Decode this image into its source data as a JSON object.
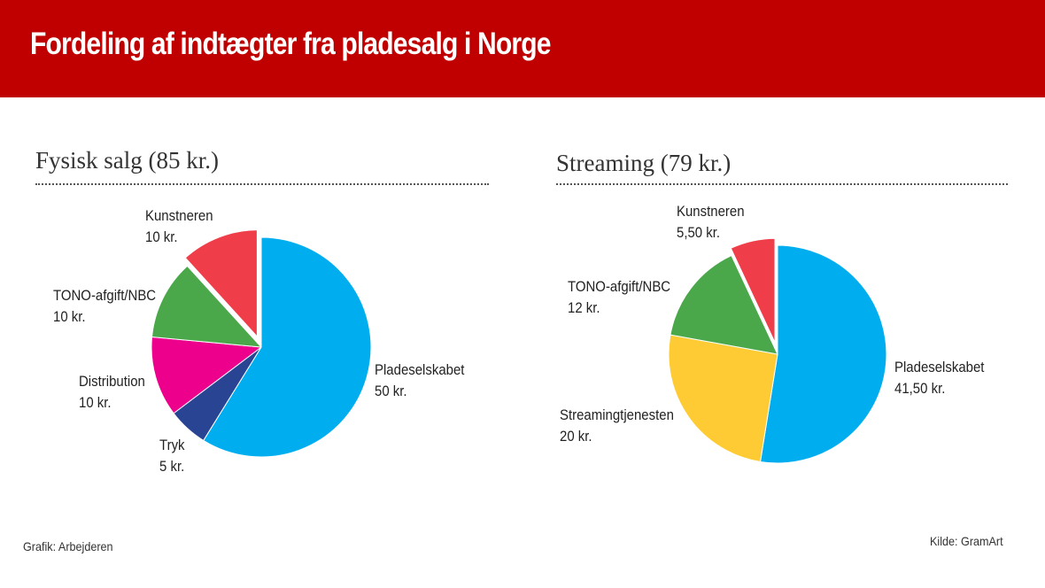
{
  "header": {
    "title": "Fordeling af indtægter fra pladesalg i Norge"
  },
  "footer": {
    "credit": "Grafik: Arbejderen",
    "source": "Kilde: GramArt"
  },
  "colors": {
    "header_bg": "#c00000",
    "pladeselskabet": "#00aeef",
    "tryk": "#2a4494",
    "distribution": "#ec008c",
    "tono": "#4aa84a",
    "kunstneren": "#ef3e4a",
    "streamingtjenesten": "#fecb34"
  },
  "chart_data": [
    {
      "type": "pie",
      "title": "Fysisk salg (85 kr.)",
      "slices": [
        {
          "name": "Pladeselskabet",
          "value": 50,
          "value_label": "50 kr.",
          "color": "#00aeef",
          "exploded": false
        },
        {
          "name": "Tryk",
          "value": 5,
          "value_label": "5 kr.",
          "color": "#2a4494",
          "exploded": false
        },
        {
          "name": "Distribution",
          "value": 10,
          "value_label": "10 kr.",
          "color": "#ec008c",
          "exploded": false
        },
        {
          "name": "TONO-afgift/NBC",
          "value": 10,
          "value_label": "10 kr.",
          "color": "#4aa84a",
          "exploded": false
        },
        {
          "name": "Kunstneren",
          "value": 10,
          "value_label": "10 kr.",
          "color": "#ef3e4a",
          "exploded": true
        }
      ]
    },
    {
      "type": "pie",
      "title": "Streaming (79 kr.)",
      "slices": [
        {
          "name": "Pladeselskabet",
          "value": 41.5,
          "value_label": "41,50 kr.",
          "color": "#00aeef",
          "exploded": false
        },
        {
          "name": "Streamingtjenesten",
          "value": 20,
          "value_label": "20 kr.",
          "color": "#fecb34",
          "exploded": false
        },
        {
          "name": "TONO-afgift/NBC",
          "value": 12,
          "value_label": "12 kr.",
          "color": "#4aa84a",
          "exploded": false
        },
        {
          "name": "Kunstneren",
          "value": 5.5,
          "value_label": "5,50 kr.",
          "color": "#ef3e4a",
          "exploded": true
        }
      ]
    }
  ]
}
